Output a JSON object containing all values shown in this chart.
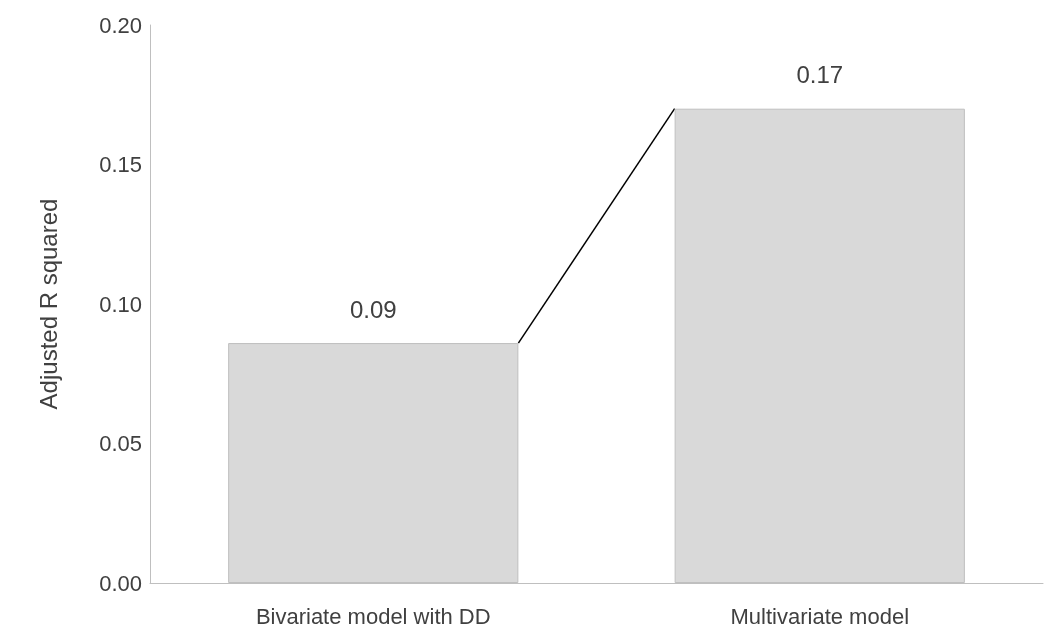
{
  "chart_data": {
    "type": "bar",
    "ylabel": "Adjusted R squared",
    "categories": [
      "Bivariate model with DD",
      "Multivariate model"
    ],
    "values": [
      0.086,
      0.17
    ],
    "value_labels": [
      "0.09",
      "0.17"
    ],
    "color": "#d9d9d9",
    "ylim": [
      0,
      0.2
    ],
    "yticks": [
      {
        "value": 0,
        "label": "0.00"
      },
      {
        "value": 0.05,
        "label": "0.05"
      },
      {
        "value": 0.1,
        "label": "0.10"
      },
      {
        "value": 0.15,
        "label": "0.15"
      },
      {
        "value": 0.2,
        "label": "0.20"
      }
    ],
    "grid": false
  }
}
